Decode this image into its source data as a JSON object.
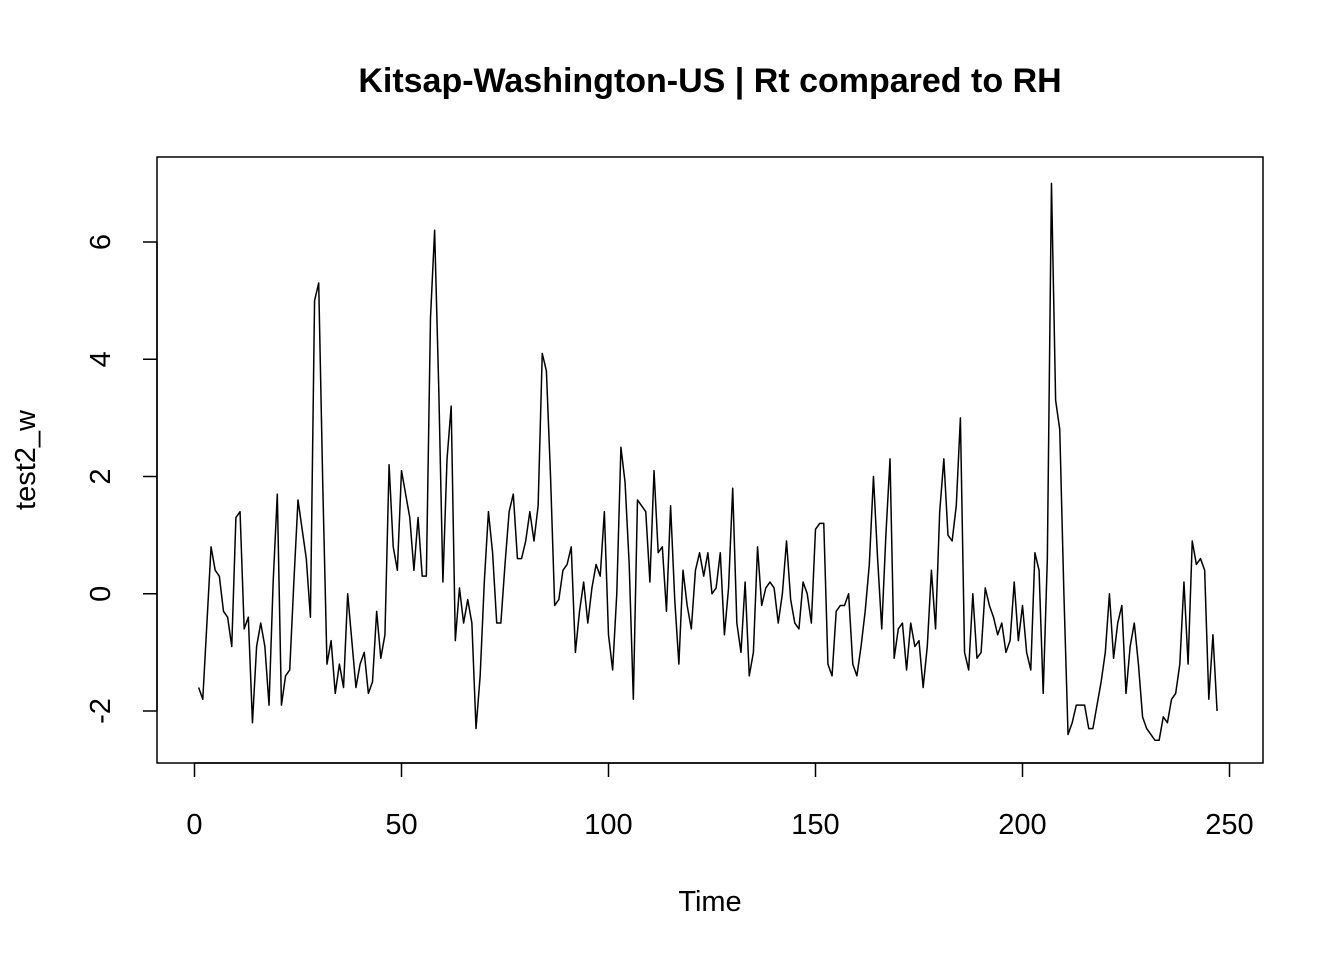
{
  "chart_data": {
    "type": "line",
    "title": "Kitsap-Washington-US | Rt compared to RH",
    "xlabel": "Time",
    "ylabel": "test2_w",
    "xlim": [
      0,
      250
    ],
    "ylim": [
      -2.5,
      7
    ],
    "x_ticks": [
      0,
      50,
      100,
      150,
      200,
      250
    ],
    "x_tick_labels": [
      "0",
      "50",
      "100",
      "150",
      "200",
      "250"
    ],
    "y_ticks": [
      -2,
      0,
      2,
      4,
      6
    ],
    "y_tick_labels": [
      "-2",
      "0",
      "2",
      "4",
      "6"
    ],
    "grid": false,
    "legend": "none",
    "line_color": "#000000",
    "series": [
      {
        "x_start": 1,
        "x_step": 1,
        "values": [
          -1.6,
          -1.8,
          -0.5,
          0.8,
          0.4,
          0.3,
          -0.3,
          -0.4,
          -0.9,
          1.3,
          1.4,
          -0.6,
          -0.4,
          -2.2,
          -0.9,
          -0.5,
          -0.9,
          -1.9,
          0.2,
          1.7,
          -1.9,
          -1.4,
          -1.3,
          0.2,
          1.6,
          1.1,
          0.6,
          -0.4,
          5.0,
          5.3,
          1.8,
          -1.2,
          -0.8,
          -1.7,
          -1.2,
          -1.6,
          0.0,
          -0.8,
          -1.6,
          -1.2,
          -1.0,
          -1.7,
          -1.5,
          -0.3,
          -1.1,
          -0.7,
          2.2,
          0.8,
          0.4,
          2.1,
          1.7,
          1.3,
          0.4,
          1.3,
          0.3,
          0.3,
          4.7,
          6.2,
          3.5,
          0.2,
          2.3,
          3.2,
          -0.8,
          0.1,
          -0.5,
          -0.1,
          -0.5,
          -2.3,
          -1.4,
          0.2,
          1.4,
          0.7,
          -0.5,
          -0.5,
          0.5,
          1.4,
          1.7,
          0.6,
          0.6,
          0.9,
          1.4,
          0.9,
          1.5,
          4.1,
          3.8,
          2.0,
          -0.2,
          -0.1,
          0.4,
          0.5,
          0.8,
          -1.0,
          -0.3,
          0.2,
          -0.5,
          0.1,
          0.5,
          0.3,
          1.4,
          -0.7,
          -1.3,
          0.0,
          2.5,
          1.9,
          0.5,
          -1.8,
          1.6,
          1.5,
          1.4,
          0.2,
          2.1,
          0.7,
          0.8,
          -0.3,
          1.5,
          -0.1,
          -1.2,
          0.4,
          -0.2,
          -0.6,
          0.4,
          0.7,
          0.3,
          0.7,
          0.0,
          0.1,
          0.7,
          -0.7,
          0.1,
          1.8,
          -0.5,
          -1.0,
          0.2,
          -1.4,
          -1.0,
          0.8,
          -0.2,
          0.1,
          0.2,
          0.1,
          -0.5,
          0.0,
          0.9,
          -0.1,
          -0.5,
          -0.6,
          0.2,
          0.0,
          -0.5,
          1.1,
          1.2,
          1.2,
          -1.2,
          -1.4,
          -0.3,
          -0.2,
          -0.2,
          0.0,
          -1.2,
          -1.4,
          -0.9,
          -0.3,
          0.5,
          2.0,
          0.6,
          -0.6,
          1.0,
          2.3,
          -1.1,
          -0.6,
          -0.5,
          -1.3,
          -0.5,
          -0.9,
          -0.8,
          -1.6,
          -0.9,
          0.4,
          -0.6,
          1.4,
          2.3,
          1.0,
          0.9,
          1.5,
          3.0,
          -1.0,
          -1.3,
          0.0,
          -1.1,
          -1.0,
          0.1,
          -0.2,
          -0.4,
          -0.7,
          -0.5,
          -1.0,
          -0.8,
          0.2,
          -0.8,
          -0.2,
          -1.0,
          -1.3,
          0.7,
          0.4,
          -1.7,
          0.6,
          7.0,
          3.3,
          2.8,
          0.0,
          -2.4,
          -2.2,
          -1.9,
          -1.9,
          -1.9,
          -2.3,
          -2.3,
          -1.9,
          -1.5,
          -1.0,
          0.0,
          -1.1,
          -0.5,
          -0.2,
          -1.7,
          -0.9,
          -0.5,
          -1.2,
          -2.1,
          -2.3,
          -2.4,
          -2.5,
          -2.5,
          -2.1,
          -2.2,
          -1.8,
          -1.7,
          -1.2,
          0.2,
          -1.2,
          0.9,
          0.5,
          0.6,
          0.4,
          -1.8,
          -0.7,
          -2.0
        ]
      }
    ]
  }
}
